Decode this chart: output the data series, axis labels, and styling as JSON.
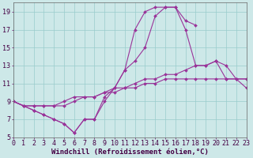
{
  "xlabel": "Windchill (Refroidissement éolien,°C)",
  "background_color": "#cde8e8",
  "grid_color": "#99cccc",
  "line_color": "#993399",
  "x": [
    0,
    1,
    2,
    3,
    4,
    5,
    6,
    7,
    8,
    9,
    10,
    11,
    12,
    13,
    14,
    15,
    16,
    17,
    18,
    19,
    20,
    21,
    22,
    23
  ],
  "line1": [
    9.0,
    8.5,
    8.0,
    7.5,
    7.0,
    6.5,
    5.5,
    7.0,
    7.0,
    9.5,
    10.5,
    12.5,
    17.0,
    19.0,
    19.5,
    19.5,
    19.5,
    18.0,
    17.5,
    null,
    null,
    null,
    null,
    null
  ],
  "line2": [
    9.0,
    8.5,
    8.0,
    7.5,
    7.0,
    6.5,
    5.5,
    7.0,
    7.0,
    9.0,
    10.5,
    12.5,
    13.5,
    15.0,
    18.5,
    19.5,
    19.5,
    17.0,
    13.0,
    13.0,
    13.5,
    13.0,
    11.5,
    10.5
  ],
  "line3": [
    9.0,
    8.5,
    8.5,
    8.5,
    8.5,
    9.0,
    9.5,
    9.5,
    9.5,
    10.0,
    10.5,
    10.5,
    11.0,
    11.5,
    11.5,
    12.0,
    12.0,
    12.5,
    13.0,
    13.0,
    13.5,
    11.5,
    11.5,
    11.5
  ],
  "line4": [
    9.0,
    8.5,
    8.5,
    8.5,
    8.5,
    8.5,
    9.0,
    9.5,
    9.5,
    10.0,
    10.0,
    10.5,
    10.5,
    11.0,
    11.0,
    11.5,
    11.5,
    11.5,
    11.5,
    11.5,
    11.5,
    11.5,
    11.5,
    11.5
  ],
  "ylim": [
    5,
    20
  ],
  "xlim": [
    0,
    23
  ],
  "yticks": [
    5,
    7,
    9,
    11,
    13,
    15,
    17,
    19
  ],
  "xticks": [
    0,
    1,
    2,
    3,
    4,
    5,
    6,
    7,
    8,
    9,
    10,
    11,
    12,
    13,
    14,
    15,
    16,
    17,
    18,
    19,
    20,
    21,
    22,
    23
  ],
  "xlabel_fontsize": 6.5,
  "tick_fontsize": 6.0,
  "marker_size": 2.0
}
